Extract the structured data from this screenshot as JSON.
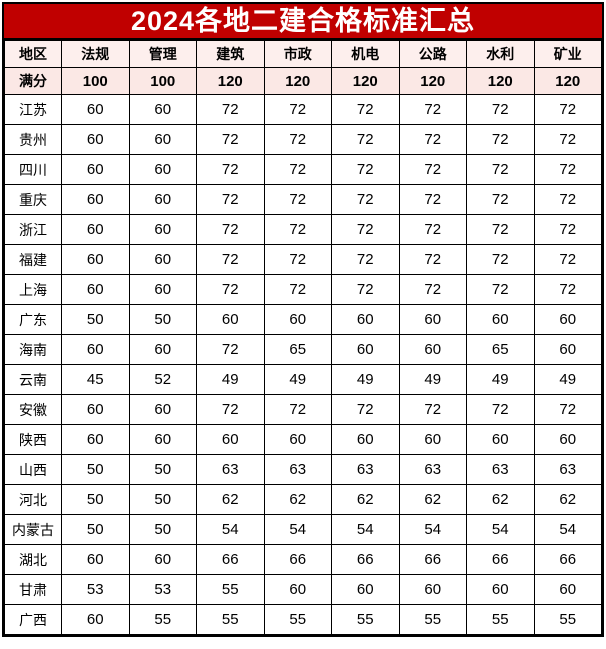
{
  "title": "2024各地二建合格标准汇总",
  "chart_data": {
    "type": "table",
    "title": "2024各地二建合格标准汇总",
    "columns": [
      "地区",
      "法规",
      "管理",
      "建筑",
      "市政",
      "机电",
      "公路",
      "水利",
      "矿业"
    ],
    "full_score": {
      "label": "满分",
      "values": [
        "100",
        "100",
        "120",
        "120",
        "120",
        "120",
        "120",
        "120"
      ]
    },
    "rows": [
      {
        "region": "江苏",
        "values": [
          "60",
          "60",
          "72",
          "72",
          "72",
          "72",
          "72",
          "72"
        ]
      },
      {
        "region": "贵州",
        "values": [
          "60",
          "60",
          "72",
          "72",
          "72",
          "72",
          "72",
          "72"
        ]
      },
      {
        "region": "四川",
        "values": [
          "60",
          "60",
          "72",
          "72",
          "72",
          "72",
          "72",
          "72"
        ]
      },
      {
        "region": "重庆",
        "values": [
          "60",
          "60",
          "72",
          "72",
          "72",
          "72",
          "72",
          "72"
        ]
      },
      {
        "region": "浙江",
        "values": [
          "60",
          "60",
          "72",
          "72",
          "72",
          "72",
          "72",
          "72"
        ]
      },
      {
        "region": "福建",
        "values": [
          "60",
          "60",
          "72",
          "72",
          "72",
          "72",
          "72",
          "72"
        ]
      },
      {
        "region": "上海",
        "values": [
          "60",
          "60",
          "72",
          "72",
          "72",
          "72",
          "72",
          "72"
        ]
      },
      {
        "region": "广东",
        "values": [
          "50",
          "50",
          "60",
          "60",
          "60",
          "60",
          "60",
          "60"
        ]
      },
      {
        "region": "海南",
        "values": [
          "60",
          "60",
          "72",
          "65",
          "60",
          "60",
          "65",
          "60"
        ]
      },
      {
        "region": "云南",
        "values": [
          "45",
          "52",
          "49",
          "49",
          "49",
          "49",
          "49",
          "49"
        ]
      },
      {
        "region": "安徽",
        "values": [
          "60",
          "60",
          "72",
          "72",
          "72",
          "72",
          "72",
          "72"
        ]
      },
      {
        "region": "陕西",
        "values": [
          "60",
          "60",
          "60",
          "60",
          "60",
          "60",
          "60",
          "60"
        ]
      },
      {
        "region": "山西",
        "values": [
          "50",
          "50",
          "63",
          "63",
          "63",
          "63",
          "63",
          "63"
        ]
      },
      {
        "region": "河北",
        "values": [
          "50",
          "50",
          "62",
          "62",
          "62",
          "62",
          "62",
          "62"
        ]
      },
      {
        "region": "内蒙古",
        "values": [
          "50",
          "50",
          "54",
          "54",
          "54",
          "54",
          "54",
          "54"
        ]
      },
      {
        "region": "湖北",
        "values": [
          "60",
          "60",
          "66",
          "66",
          "66",
          "66",
          "66",
          "66"
        ]
      },
      {
        "region": "甘肃",
        "values": [
          "53",
          "53",
          "55",
          "60",
          "60",
          "60",
          "60",
          "60"
        ]
      },
      {
        "region": "广西",
        "values": [
          "60",
          "55",
          "55",
          "55",
          "55",
          "55",
          "55",
          "55"
        ]
      }
    ]
  },
  "colors": {
    "title_bar_bg": "#c00000",
    "title_text": "#ffffff",
    "header_row_bg": "#fdefed",
    "full_score_row_bg": "#fbe8e5",
    "border": "#000000",
    "cell_text": "#000000"
  }
}
